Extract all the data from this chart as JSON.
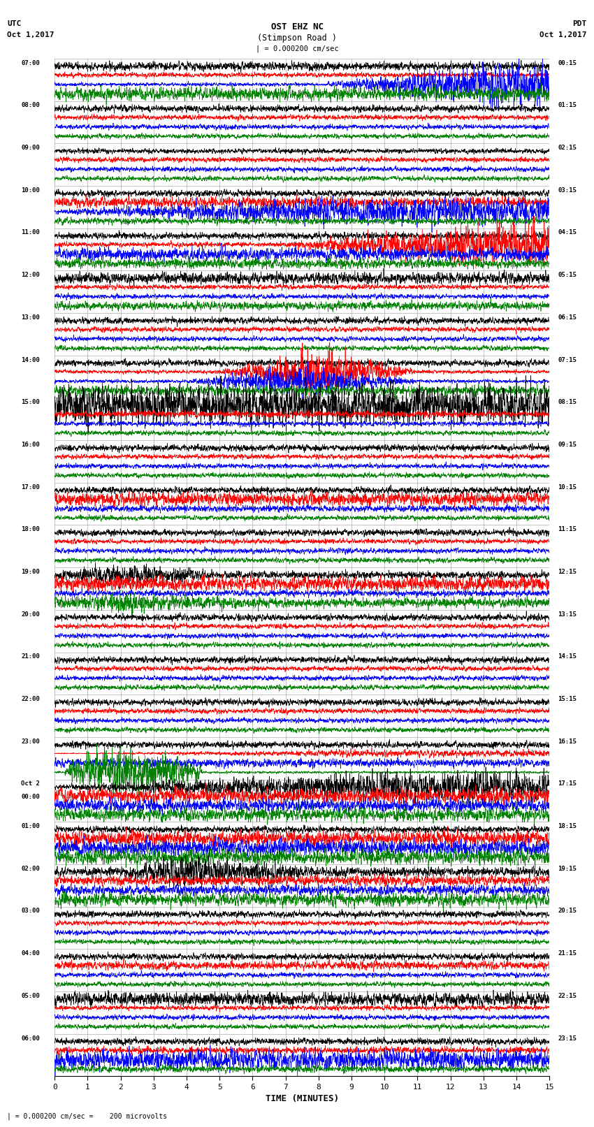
{
  "title_line1": "OST EHZ NC",
  "title_line2": "(Stimpson Road )",
  "scale_label": "| = 0.000200 cm/sec",
  "left_label_line1": "UTC",
  "left_label_line2": "Oct 1,2017",
  "right_label_line1": "PDT",
  "right_label_line2": "Oct 1,2017",
  "xlabel": "TIME (MINUTES)",
  "bottom_note": "| = 0.000200 cm/sec =    200 microvolts",
  "utc_times": [
    "07:00",
    "08:00",
    "09:00",
    "10:00",
    "11:00",
    "12:00",
    "13:00",
    "14:00",
    "15:00",
    "16:00",
    "17:00",
    "18:00",
    "19:00",
    "20:00",
    "21:00",
    "22:00",
    "23:00",
    "Oct 2\n00:00",
    "01:00",
    "02:00",
    "03:00",
    "04:00",
    "05:00",
    "06:00"
  ],
  "pdt_times": [
    "00:15",
    "01:15",
    "02:15",
    "03:15",
    "04:15",
    "05:15",
    "06:15",
    "07:15",
    "08:15",
    "09:15",
    "10:15",
    "11:15",
    "12:15",
    "13:15",
    "14:15",
    "15:15",
    "16:15",
    "17:15",
    "18:15",
    "19:15",
    "20:15",
    "21:15",
    "22:15",
    "23:15"
  ],
  "n_rows": 24,
  "traces_per_row": 4,
  "colors": [
    "black",
    "red",
    "blue",
    "green"
  ],
  "x_min": 0,
  "x_max": 15,
  "background": "white",
  "grid_color": "#888888"
}
